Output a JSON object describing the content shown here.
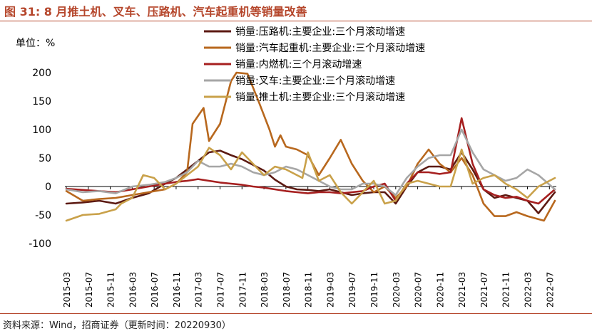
{
  "figure": {
    "title": "图 31:  8 月推土机、叉车、压路机、汽车起重机等销量改善",
    "source": "资料来源：Wind，招商证券（更新时间：20220930）"
  },
  "chart_data": {
    "type": "line",
    "ylabel": "单位：%",
    "ylim": [
      -100,
      200
    ],
    "yticks": [
      -100,
      -50,
      0,
      50,
      100,
      150,
      200
    ],
    "x_start": "2015-03",
    "x_end": "2022-08",
    "xtick_labels": [
      "2015-03",
      "2015-07",
      "2015-11",
      "2016-03",
      "2016-07",
      "2016-11",
      "2017-03",
      "2017-07",
      "2017-11",
      "2018-03",
      "2018-07",
      "2018-11",
      "2019-03",
      "2019-07",
      "2019-11",
      "2020-03",
      "2020-07",
      "2020-11",
      "2021-03",
      "2021-07",
      "2021-11",
      "2022-03",
      "2022-07"
    ],
    "legend_position": "top-right",
    "series": [
      {
        "name": "销量:压路机:主要企业:三个月滚动增速",
        "color": "#5C1A12",
        "points": [
          [
            "2015-03",
            -30
          ],
          [
            "2015-06",
            -28
          ],
          [
            "2015-09",
            -25
          ],
          [
            "2015-12",
            -30
          ],
          [
            "2016-03",
            -20
          ],
          [
            "2016-06",
            -12
          ],
          [
            "2016-09",
            5
          ],
          [
            "2016-11",
            15
          ],
          [
            "2017-01",
            30
          ],
          [
            "2017-03",
            45
          ],
          [
            "2017-05",
            60
          ],
          [
            "2017-07",
            63
          ],
          [
            "2017-09",
            55
          ],
          [
            "2017-11",
            48
          ],
          [
            "2018-01",
            38
          ],
          [
            "2018-03",
            28
          ],
          [
            "2018-05",
            12
          ],
          [
            "2018-07",
            0
          ],
          [
            "2018-09",
            -5
          ],
          [
            "2018-11",
            -6
          ],
          [
            "2019-01",
            -8
          ],
          [
            "2019-03",
            -5
          ],
          [
            "2019-05",
            -10
          ],
          [
            "2019-07",
            -15
          ],
          [
            "2019-09",
            -12
          ],
          [
            "2019-11",
            -10
          ],
          [
            "2020-01",
            -10
          ],
          [
            "2020-03",
            -30
          ],
          [
            "2020-05",
            0
          ],
          [
            "2020-07",
            25
          ],
          [
            "2020-09",
            35
          ],
          [
            "2020-11",
            35
          ],
          [
            "2021-01",
            30
          ],
          [
            "2021-03",
            60
          ],
          [
            "2021-05",
            30
          ],
          [
            "2021-07",
            -5
          ],
          [
            "2021-09",
            -20
          ],
          [
            "2021-11",
            -15
          ],
          [
            "2022-01",
            -20
          ],
          [
            "2022-03",
            -25
          ],
          [
            "2022-05",
            -47
          ],
          [
            "2022-08",
            -10
          ]
        ]
      },
      {
        "name": "销量:汽车起重机:主要企业:三个月滚动增速",
        "color": "#B8681E",
        "points": [
          [
            "2015-03",
            -8
          ],
          [
            "2015-06",
            -25
          ],
          [
            "2015-09",
            -22
          ],
          [
            "2015-12",
            -20
          ],
          [
            "2016-03",
            -15
          ],
          [
            "2016-06",
            -10
          ],
          [
            "2016-09",
            -5
          ],
          [
            "2016-11",
            5
          ],
          [
            "2017-01",
            25
          ],
          [
            "2017-02",
            110
          ],
          [
            "2017-04",
            138
          ],
          [
            "2017-05",
            80
          ],
          [
            "2017-07",
            110
          ],
          [
            "2017-09",
            185
          ],
          [
            "2017-10",
            200
          ],
          [
            "2017-12",
            198
          ],
          [
            "2018-02",
            150
          ],
          [
            "2018-04",
            100
          ],
          [
            "2018-05",
            70
          ],
          [
            "2018-06",
            90
          ],
          [
            "2018-07",
            70
          ],
          [
            "2018-09",
            65
          ],
          [
            "2018-11",
            55
          ],
          [
            "2019-01",
            20
          ],
          [
            "2019-03",
            50
          ],
          [
            "2019-05",
            82
          ],
          [
            "2019-07",
            40
          ],
          [
            "2019-09",
            10
          ],
          [
            "2019-11",
            -10
          ],
          [
            "2020-01",
            0
          ],
          [
            "2020-03",
            -20
          ],
          [
            "2020-05",
            0
          ],
          [
            "2020-07",
            40
          ],
          [
            "2020-09",
            65
          ],
          [
            "2020-11",
            40
          ],
          [
            "2021-01",
            25
          ],
          [
            "2021-03",
            50
          ],
          [
            "2021-05",
            20
          ],
          [
            "2021-07",
            -30
          ],
          [
            "2021-09",
            -52
          ],
          [
            "2021-11",
            -52
          ],
          [
            "2022-01",
            -45
          ],
          [
            "2022-03",
            -52
          ],
          [
            "2022-06",
            -60
          ],
          [
            "2022-08",
            -25
          ]
        ]
      },
      {
        "name": "销量:内燃机:三个月滚动增速",
        "color": "#A61F1F",
        "points": [
          [
            "2015-03",
            -4
          ],
          [
            "2015-06",
            -6
          ],
          [
            "2015-09",
            -8
          ],
          [
            "2015-12",
            -10
          ],
          [
            "2016-03",
            -5
          ],
          [
            "2016-06",
            0
          ],
          [
            "2016-09",
            5
          ],
          [
            "2016-11",
            8
          ],
          [
            "2017-01",
            10
          ],
          [
            "2017-03",
            13
          ],
          [
            "2017-05",
            10
          ],
          [
            "2017-07",
            7
          ],
          [
            "2017-09",
            5
          ],
          [
            "2017-11",
            3
          ],
          [
            "2018-01",
            0
          ],
          [
            "2018-03",
            -2
          ],
          [
            "2018-05",
            -5
          ],
          [
            "2018-07",
            -8
          ],
          [
            "2018-09",
            -10
          ],
          [
            "2018-11",
            -12
          ],
          [
            "2019-01",
            -10
          ],
          [
            "2019-03",
            -10
          ],
          [
            "2019-05",
            -12
          ],
          [
            "2019-07",
            -10
          ],
          [
            "2019-09",
            -8
          ],
          [
            "2019-11",
            0
          ],
          [
            "2020-01",
            5
          ],
          [
            "2020-03",
            -25
          ],
          [
            "2020-05",
            5
          ],
          [
            "2020-07",
            25
          ],
          [
            "2020-09",
            25
          ],
          [
            "2020-11",
            22
          ],
          [
            "2021-01",
            25
          ],
          [
            "2021-03",
            120
          ],
          [
            "2021-05",
            40
          ],
          [
            "2021-07",
            -5
          ],
          [
            "2021-09",
            -15
          ],
          [
            "2021-11",
            -20
          ],
          [
            "2022-01",
            -18
          ],
          [
            "2022-03",
            -25
          ],
          [
            "2022-05",
            -30
          ],
          [
            "2022-08",
            -5
          ]
        ]
      },
      {
        "name": "销量:叉车:主要企业:三个月滚动增速",
        "color": "#A6A6A6",
        "points": [
          [
            "2015-03",
            -5
          ],
          [
            "2015-06",
            -10
          ],
          [
            "2015-09",
            -8
          ],
          [
            "2015-12",
            -12
          ],
          [
            "2016-03",
            0
          ],
          [
            "2016-06",
            3
          ],
          [
            "2016-09",
            8
          ],
          [
            "2016-11",
            15
          ],
          [
            "2017-01",
            25
          ],
          [
            "2017-03",
            45
          ],
          [
            "2017-05",
            35
          ],
          [
            "2017-07",
            35
          ],
          [
            "2017-09",
            40
          ],
          [
            "2017-11",
            35
          ],
          [
            "2018-01",
            25
          ],
          [
            "2018-03",
            20
          ],
          [
            "2018-05",
            25
          ],
          [
            "2018-07",
            35
          ],
          [
            "2018-09",
            30
          ],
          [
            "2018-11",
            20
          ],
          [
            "2019-01",
            10
          ],
          [
            "2019-03",
            0
          ],
          [
            "2019-05",
            -5
          ],
          [
            "2019-07",
            -5
          ],
          [
            "2019-09",
            5
          ],
          [
            "2019-11",
            5
          ],
          [
            "2020-01",
            0
          ],
          [
            "2020-03",
            -15
          ],
          [
            "2020-05",
            15
          ],
          [
            "2020-07",
            35
          ],
          [
            "2020-09",
            50
          ],
          [
            "2020-11",
            55
          ],
          [
            "2021-01",
            55
          ],
          [
            "2021-03",
            100
          ],
          [
            "2021-05",
            60
          ],
          [
            "2021-07",
            30
          ],
          [
            "2021-09",
            20
          ],
          [
            "2021-11",
            10
          ],
          [
            "2022-01",
            15
          ],
          [
            "2022-03",
            30
          ],
          [
            "2022-05",
            20
          ],
          [
            "2022-08",
            -5
          ]
        ]
      },
      {
        "name": "销量:推土机:主要企业:三个月滚动增速",
        "color": "#C9A14A",
        "points": [
          [
            "2015-03",
            -60
          ],
          [
            "2015-06",
            -50
          ],
          [
            "2015-09",
            -48
          ],
          [
            "2015-12",
            -40
          ],
          [
            "2016-01",
            -30
          ],
          [
            "2016-03",
            -20
          ],
          [
            "2016-05",
            20
          ],
          [
            "2016-07",
            15
          ],
          [
            "2016-09",
            -5
          ],
          [
            "2016-11",
            5
          ],
          [
            "2017-01",
            20
          ],
          [
            "2017-03",
            35
          ],
          [
            "2017-05",
            68
          ],
          [
            "2017-07",
            55
          ],
          [
            "2017-09",
            30
          ],
          [
            "2017-11",
            60
          ],
          [
            "2018-01",
            40
          ],
          [
            "2018-03",
            20
          ],
          [
            "2018-05",
            35
          ],
          [
            "2018-07",
            30
          ],
          [
            "2018-09",
            20
          ],
          [
            "2018-10",
            15
          ],
          [
            "2018-11",
            60
          ],
          [
            "2019-01",
            10
          ],
          [
            "2019-03",
            20
          ],
          [
            "2019-05",
            -10
          ],
          [
            "2019-07",
            -30
          ],
          [
            "2019-09",
            -10
          ],
          [
            "2019-11",
            10
          ],
          [
            "2020-01",
            -30
          ],
          [
            "2020-03",
            -25
          ],
          [
            "2020-05",
            5
          ],
          [
            "2020-07",
            10
          ],
          [
            "2020-09",
            5
          ],
          [
            "2020-11",
            0
          ],
          [
            "2021-01",
            0
          ],
          [
            "2021-03",
            65
          ],
          [
            "2021-05",
            5
          ],
          [
            "2021-07",
            15
          ],
          [
            "2021-09",
            20
          ],
          [
            "2021-11",
            5
          ],
          [
            "2022-01",
            -5
          ],
          [
            "2022-03",
            -20
          ],
          [
            "2022-05",
            0
          ],
          [
            "2022-08",
            15
          ]
        ]
      }
    ]
  }
}
